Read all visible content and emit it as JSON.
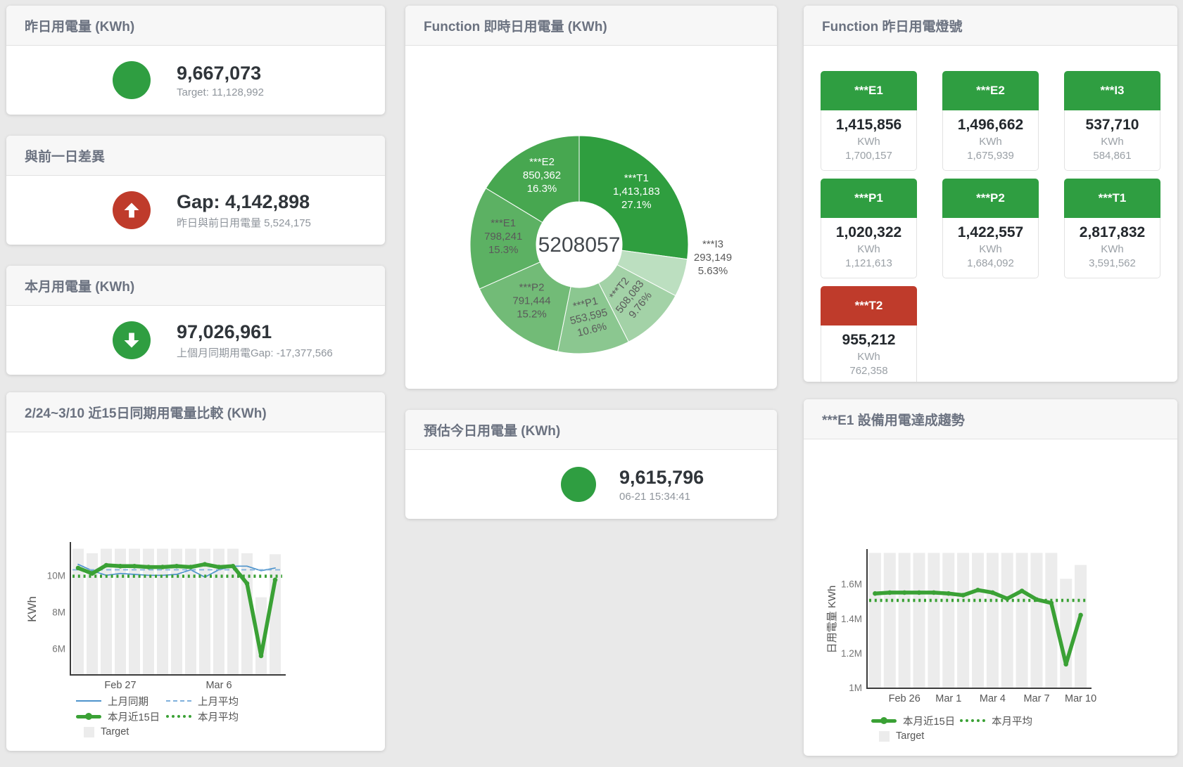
{
  "page": {
    "background": "#e9e9e9"
  },
  "colors": {
    "green": "#2f9e41",
    "red": "#bf3b2b",
    "line_green": "#3aa135",
    "blue": "#4e94cc",
    "blue_light": "#7fb0dc",
    "target_bar": "#ececec",
    "title_text": "#6b7280",
    "value_text": "#30353a",
    "muted_text": "#8f959c"
  },
  "cards": {
    "yesterday": {
      "title": "昨日用電量 (KWh)",
      "value": "9,667,073",
      "subtitle": "Target: 11,128,992",
      "indicator": "green-circle"
    },
    "day_gap": {
      "title": "與前一日差異",
      "value": "Gap: 4,142,898",
      "subtitle": "昨日與前日用電量 5,524,175",
      "indicator": "red-circle-up-arrow"
    },
    "month": {
      "title": "本月用電量 (KWh)",
      "value": "97,026,961",
      "subtitle": "上個月同期用電Gap: -17,377,566",
      "indicator": "green-circle-down-arrow"
    },
    "forecast": {
      "title": "預估今日用電量 (KWh)",
      "value": "9,615,796",
      "subtitle": "06-21 15:34:41",
      "indicator": "green-circle"
    },
    "lights": {
      "title": "Function 昨日用電燈號",
      "tiles": [
        {
          "name": "***E1",
          "value": "1,415,856",
          "unit": "KWh",
          "target": "1,700,157",
          "status": "green"
        },
        {
          "name": "***E2",
          "value": "1,496,662",
          "unit": "KWh",
          "target": "1,675,939",
          "status": "green"
        },
        {
          "name": "***I3",
          "value": "537,710",
          "unit": "KWh",
          "target": "584,861",
          "status": "green"
        },
        {
          "name": "***P1",
          "value": "1,020,322",
          "unit": "KWh",
          "target": "1,121,613",
          "status": "green"
        },
        {
          "name": "***P2",
          "value": "1,422,557",
          "unit": "KWh",
          "target": "1,684,092",
          "status": "green"
        },
        {
          "name": "***T1",
          "value": "2,817,832",
          "unit": "KWh",
          "target": "3,591,562",
          "status": "green"
        },
        {
          "name": "***T2",
          "value": "955,212",
          "unit": "KWh",
          "target": "762,358",
          "status": "red"
        }
      ]
    }
  },
  "chart_data": [
    {
      "type": "pie",
      "title": "Function 即時日用電量 (KWh)",
      "donut": true,
      "center_label": "5208057",
      "unit": "KWh",
      "segments": [
        {
          "name": "***T1",
          "value": 1413183,
          "value_label": "1,413,183",
          "pct_label": "27.1%",
          "color": "#2f9e3f",
          "text": "#ffffff",
          "rotate": 0
        },
        {
          "name": "***I3",
          "value": 293149,
          "value_label": "293,149",
          "pct_label": "5.63%",
          "color": "#bcdfc0",
          "text": "#5a5a5a",
          "outside": true
        },
        {
          "name": "***T2",
          "value": 508083,
          "value_label": "508,083",
          "pct_label": "9.76%",
          "color": "#a3d2a7",
          "text": "#5a5a5a",
          "rotate": -52
        },
        {
          "name": "***P1",
          "value": 553595,
          "value_label": "553,595",
          "pct_label": "10.6%",
          "color": "#8bc790",
          "text": "#5a5a5a",
          "rotate": -14
        },
        {
          "name": "***P2",
          "value": 791444,
          "value_label": "791,444",
          "pct_label": "15.2%",
          "color": "#72bb77",
          "text": "#5a5a5a",
          "rotate": 0
        },
        {
          "name": "***E1",
          "value": 798241,
          "value_label": "798,241",
          "pct_label": "15.3%",
          "color": "#5cb163",
          "text": "#5a5a5a",
          "rotate": 0
        },
        {
          "name": "***E2",
          "value": 850362,
          "value_label": "850,362",
          "pct_label": "16.3%",
          "color": "#47a750",
          "text": "#ffffff",
          "rotate": 0
        }
      ]
    },
    {
      "type": "line",
      "title": "2/24~3/10 近15日同期用電量比較 (KWh)",
      "ylabel": "KWh",
      "y_unit": "M",
      "x_days": 15,
      "x_range": "2/24~3/10",
      "x_ticks": [
        {
          "label": "Feb 27",
          "index": 3
        },
        {
          "label": "Mar 6",
          "index": 10
        }
      ],
      "y_ticks": [
        {
          "label": "6M",
          "value": 6
        },
        {
          "label": "8M",
          "value": 8
        },
        {
          "label": "10M",
          "value": 10
        }
      ],
      "ylim": [
        4.6,
        11.7
      ],
      "grid": false,
      "legend_position": "bottom",
      "bars": {
        "name": "Target",
        "color": "#ececec",
        "values": [
          11.45,
          11.2,
          11.45,
          11.45,
          11.45,
          11.45,
          11.45,
          11.45,
          11.45,
          11.45,
          11.45,
          11.45,
          11.2,
          8.8,
          11.15
        ]
      },
      "series": [
        {
          "name": "上月同期",
          "style": "solid",
          "width": 1.7,
          "color": "#4e94cc",
          "values": [
            10.6,
            10.25,
            10.0,
            10.1,
            10.05,
            10.0,
            10.0,
            10.05,
            10.3,
            9.9,
            10.3,
            10.5,
            10.5,
            10.25,
            10.4
          ]
        },
        {
          "name": "上月平均",
          "style": "dashed",
          "width": 1.8,
          "color": "#7fb0dc",
          "constant": 10.3
        },
        {
          "name": "本月近15日",
          "style": "solid",
          "width": 5.5,
          "color": "#3aa135",
          "markers": true,
          "values": [
            10.4,
            10.1,
            10.55,
            10.5,
            10.5,
            10.45,
            10.45,
            10.5,
            10.45,
            10.6,
            10.45,
            10.5,
            9.55,
            5.6,
            9.75
          ]
        },
        {
          "name": "本月平均",
          "style": "dotted",
          "width": 4.5,
          "color": "#3aa135",
          "constant": 9.95
        }
      ]
    },
    {
      "type": "line",
      "title": "***E1 設備用電達成趨勢",
      "ylabel": "日用電量 KWh",
      "y_unit": "M",
      "x_days": 15,
      "x_ticks": [
        {
          "label": "Feb 26",
          "index": 2
        },
        {
          "label": "Mar 1",
          "index": 5
        },
        {
          "label": "Mar 4",
          "index": 8
        },
        {
          "label": "Mar 7",
          "index": 11
        },
        {
          "label": "Mar 10",
          "index": 14
        }
      ],
      "y_ticks": [
        {
          "label": "1M",
          "value": 1
        },
        {
          "label": "1.2M",
          "value": 1.2
        },
        {
          "label": "1.4M",
          "value": 1.4
        },
        {
          "label": "1.6M",
          "value": 1.6
        }
      ],
      "ylim": [
        1.0,
        1.79
      ],
      "grid": false,
      "legend_position": "bottom",
      "bars": {
        "name": "Target",
        "color": "#ececec",
        "values": [
          1.78,
          1.78,
          1.78,
          1.78,
          1.78,
          1.78,
          1.78,
          1.78,
          1.78,
          1.78,
          1.78,
          1.78,
          1.78,
          1.63,
          1.71
        ]
      },
      "series": [
        {
          "name": "本月近15日",
          "style": "solid",
          "width": 5.5,
          "color": "#3aa135",
          "markers": true,
          "values": [
            1.545,
            1.55,
            1.55,
            1.55,
            1.55,
            1.545,
            1.535,
            1.565,
            1.55,
            1.515,
            1.56,
            1.51,
            1.49,
            1.135,
            1.42
          ]
        },
        {
          "name": "本月平均",
          "style": "dotted",
          "width": 4.5,
          "color": "#3aa135",
          "constant": 1.505
        }
      ]
    }
  ]
}
